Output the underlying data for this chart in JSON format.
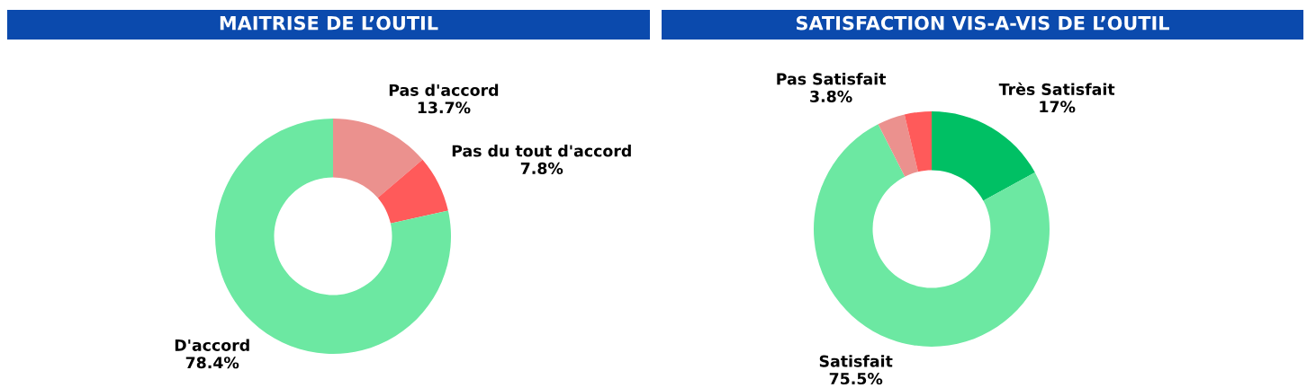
{
  "chart_data": [
    {
      "type": "donut",
      "title": "MAITRISE DE L’OUTIL",
      "categories": [
        "Pas d'accord",
        "Pas du tout d'accord",
        "D'accord"
      ],
      "values": [
        13.7,
        7.8,
        78.4
      ],
      "colors": [
        "#eb918e",
        "#ff5a5a",
        "#6ce8a2"
      ],
      "value_labels": [
        "13.7%",
        "7.8%",
        "78.4%"
      ]
    },
    {
      "type": "donut",
      "title": "SATISFACTION VIS-A-VIS DE L’OUTIL",
      "categories": [
        "Très Satisfait",
        "Satisfait",
        "Pas Satisfait",
        null
      ],
      "values": [
        17,
        75.5,
        3.8,
        3.7
      ],
      "colors": [
        "#00c064",
        "#6ce8a2",
        "#eb918e",
        "#ff5a5a"
      ],
      "value_labels": [
        "17%",
        "75.5%",
        "3.8%",
        null
      ]
    }
  ]
}
